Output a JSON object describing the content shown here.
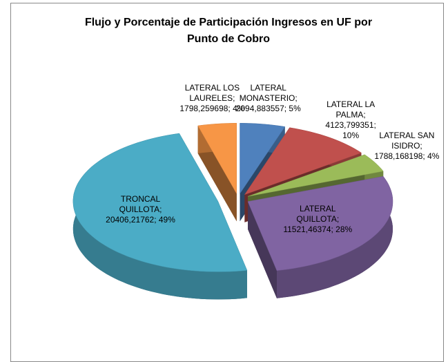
{
  "chart_data": {
    "type": "pie3d",
    "title": "Flujo y Porcentaje de Participación Ingresos en UF por Punto de Cobro",
    "categories": [
      "LATERAL MONASTERIO",
      "LATERAL LA PALMA",
      "LATERAL SAN ISIDRO",
      "LATERAL QUILLOTA",
      "TRONCAL QUILLOTA",
      "LATERAL LOS LAURELES"
    ],
    "values": [
      2094.883557,
      4123.799351,
      1788.168198,
      11521.46374,
      20406.21762,
      1798.259698
    ],
    "value_labels": [
      "; 2094,883557; 5%",
      "; 4123,799351; 10%",
      "; 1788,168198; 4%",
      "; 11521,46374; 28%",
      "; 20406,21762; 49%",
      "; 1798,259698; 4%"
    ],
    "colors": [
      "#4f81bd",
      "#c0504d",
      "#9bbb59",
      "#8064a2",
      "#4bacc6",
      "#f79646"
    ]
  }
}
